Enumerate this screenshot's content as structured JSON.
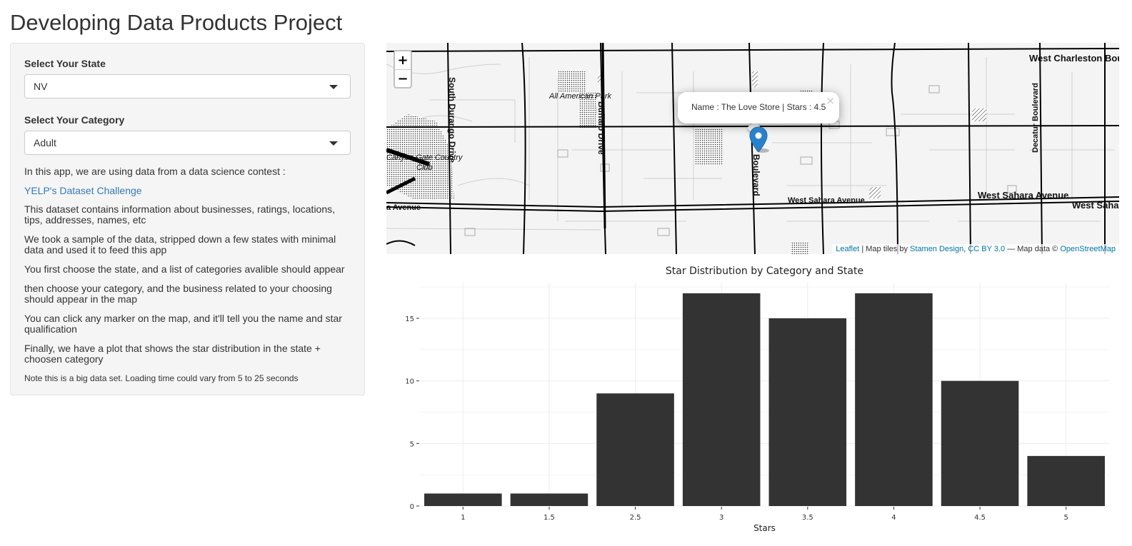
{
  "page": {
    "title": "Developing Data Products Project"
  },
  "sidebar": {
    "state_label": "Select Your State",
    "state_value": "NV",
    "category_label": "Select Your Category",
    "category_value": "Adult",
    "intro": "In this app, we are using data from a data science contest :",
    "link_text": "YELP's Dataset Challenge",
    "paragraphs": [
      "This dataset contains information about businesses, ratings, locations, tips, addresses, names, etc",
      "We took a sample of the data, stripped down a few states with minimal data and used it to feed this app",
      "You first choose the state, and a list of categories avalible should appear",
      "then choose your category, and the business related to your choosing should appear in the map",
      "You can click any marker on the map, and it'll tell you the name and star qualification",
      "Finally, we have a plot that shows the star distribution in the state + choosen category"
    ],
    "note": "Note this is a big data set. Loading time could vary from 5 to 25 seconds"
  },
  "map": {
    "zoom_in": "+",
    "zoom_out": "−",
    "popup_text": "Name : The Love Store | Stars : 4.5",
    "popup_close": "×",
    "marker_color": "#2a81cb",
    "labels": {
      "south_durango": "South Durango Drive",
      "buffalo": "Buffalo Drive",
      "all_american_park": "All American Park",
      "canyon_gate": "Canyon Gate Country",
      "club": "Club",
      "avenue_left": "a Avenue",
      "boulevard": "Boulevard",
      "west_sahara_1": "West Sahara Avenue",
      "west_sahara_2": "West Sahara Avenue",
      "west_saha": "West Saha",
      "west_charleston": "West Charleston Bou",
      "decatur": "Decatur Boulevard"
    },
    "attribution": {
      "leaflet": "Leaflet",
      "tiles_by": " | Map tiles by ",
      "stamen": "Stamen Design",
      "sep": ", ",
      "cc": "CC BY 3.0",
      "data_by": " — Map data © ",
      "osm": "OpenStreetMap"
    }
  },
  "chart_data": {
    "type": "bar",
    "title": "Star Distribution by Category and State",
    "xlabel": "Stars",
    "ylabel": "",
    "categories": [
      "1",
      "1.5",
      "2.5",
      "3",
      "3.5",
      "4",
      "4.5",
      "5"
    ],
    "values": [
      1,
      1,
      9,
      17,
      15,
      17,
      10,
      4
    ],
    "yticks": [
      0,
      5,
      10,
      15
    ],
    "ylim": [
      0,
      17.85
    ],
    "bar_color": "#333333",
    "grid": true
  }
}
